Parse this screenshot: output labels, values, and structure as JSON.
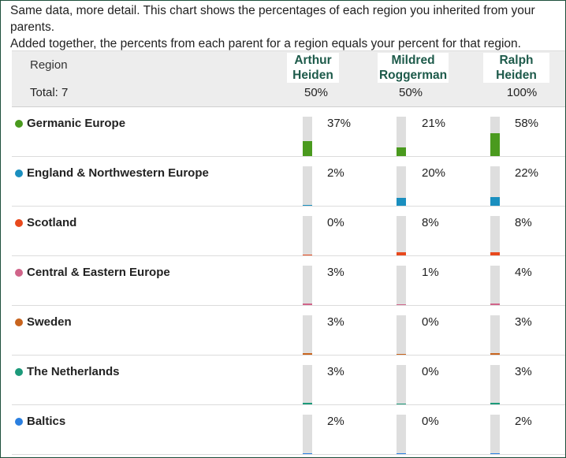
{
  "intro": {
    "line1": "Same data, more detail. This chart shows the percentages of each region you inherited from your parents.",
    "line2": "Added together, the percents from each parent for a region equals your percent for that region."
  },
  "header": {
    "region_label": "Region",
    "total_label": "Total: 7"
  },
  "chart_data": {
    "type": "table",
    "columns": [
      {
        "name_line1": "Arthur",
        "name_line2": "Heiden",
        "total": "50%"
      },
      {
        "name_line1": "Mildred",
        "name_line2": "Roggerman",
        "total": "50%"
      },
      {
        "name_line1": "Ralph",
        "name_line2": "Heiden",
        "total": "100%"
      }
    ],
    "rows": [
      {
        "region": "Germanic Europe",
        "color": "#4a9a1e",
        "values": [
          37,
          21,
          58
        ],
        "labels": [
          "37%",
          "21%",
          "58%"
        ]
      },
      {
        "region": "England & Northwestern Europe",
        "color": "#1a8fbf",
        "values": [
          2,
          20,
          22
        ],
        "labels": [
          "2%",
          "20%",
          "22%"
        ]
      },
      {
        "region": "Scotland",
        "color": "#e8491d",
        "values": [
          0,
          8,
          8
        ],
        "labels": [
          "0%",
          "8%",
          "8%"
        ]
      },
      {
        "region": "Central & Eastern Europe",
        "color": "#d0648a",
        "values": [
          3,
          1,
          4
        ],
        "labels": [
          "3%",
          "1%",
          "4%"
        ]
      },
      {
        "region": "Sweden",
        "color": "#c8641e",
        "values": [
          3,
          0,
          3
        ],
        "labels": [
          "3%",
          "0%",
          "3%"
        ]
      },
      {
        "region": "The Netherlands",
        "color": "#1c9a7a",
        "values": [
          3,
          0,
          3
        ],
        "labels": [
          "3%",
          "0%",
          "3%"
        ]
      },
      {
        "region": "Baltics",
        "color": "#2a7fe0",
        "values": [
          2,
          0,
          2
        ],
        "labels": [
          "2%",
          "0%",
          "2%"
        ]
      }
    ]
  }
}
